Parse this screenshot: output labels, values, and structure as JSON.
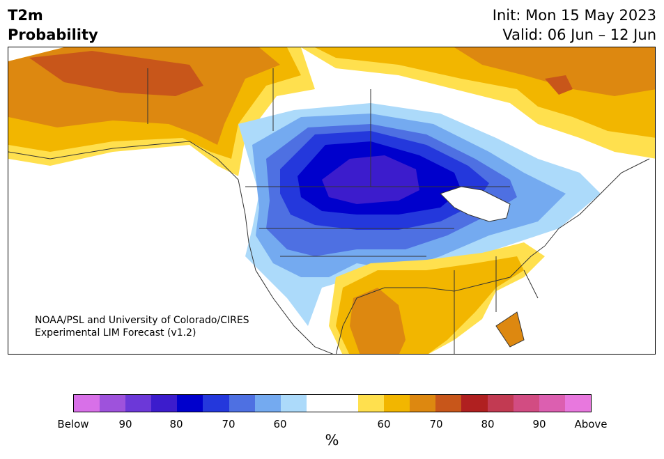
{
  "header": {
    "title_line1": "T2m",
    "title_line2": "Probability",
    "init_text": "Init: Mon 15 May 2023",
    "valid_text": "Valid: 06 Jun – 12 Jun"
  },
  "map": {
    "credit_line1": "NOAA/PSL and University of Colorado/CIRES",
    "credit_line2": "Experimental LIM Forecast (v1.2)"
  },
  "colorbar": {
    "colors": [
      "#d870e8",
      "#9e52dc",
      "#6c38d8",
      "#3c1ccc",
      "#0000cc",
      "#2438dc",
      "#4e70e2",
      "#74aaf0",
      "#acdafa",
      "#ffffff",
      "#ffffff",
      "#ffe04e",
      "#f2b600",
      "#dd8810",
      "#c8561a",
      "#b02020",
      "#c23a52",
      "#d24c82",
      "#dc5fb0",
      "#e878de"
    ],
    "tick_labels": [
      "Below",
      "90",
      "80",
      "70",
      "60",
      "60",
      "70",
      "80",
      "90",
      "Above"
    ],
    "unit_label": "%"
  }
}
